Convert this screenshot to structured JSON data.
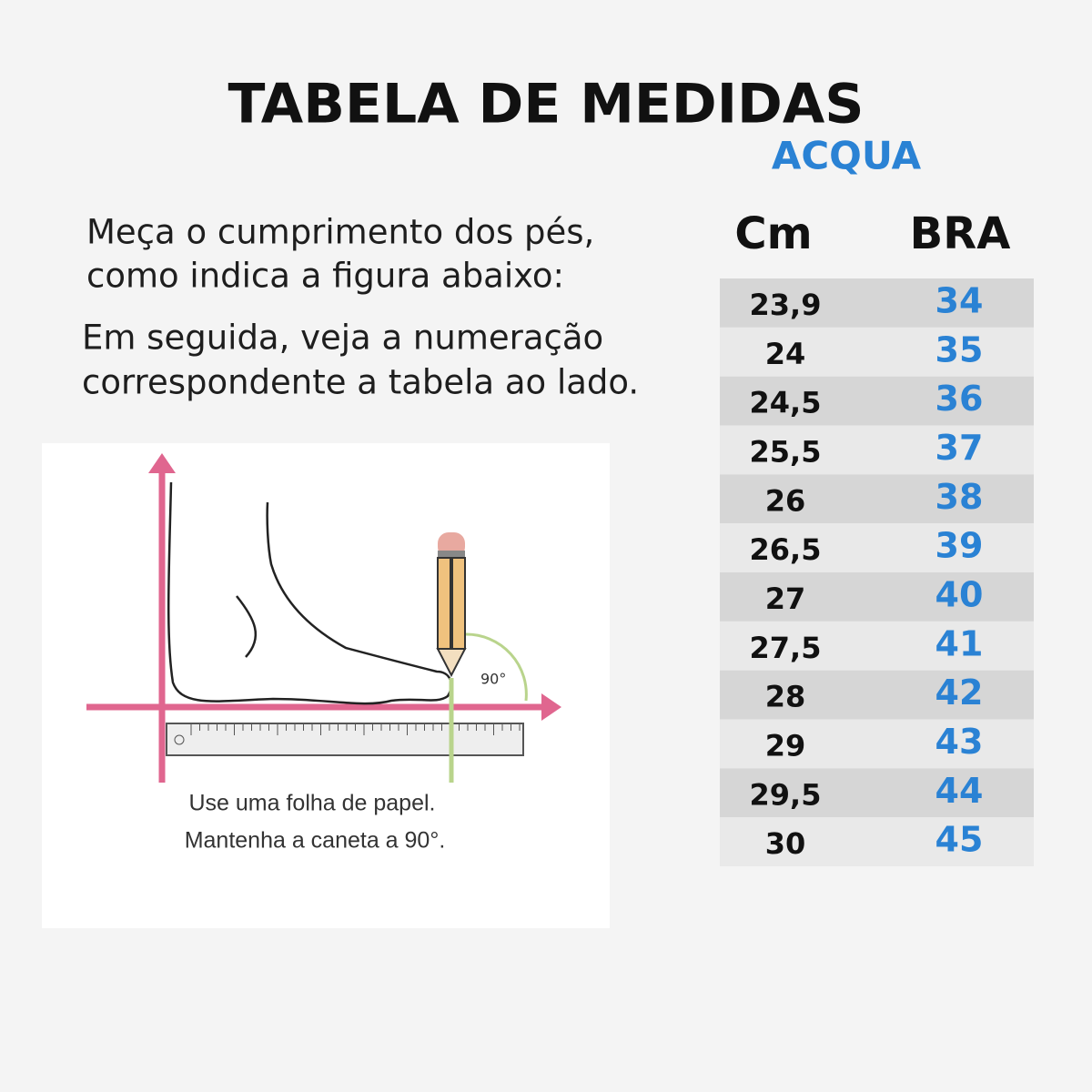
{
  "header": {
    "title": "TABELA DE MEDIDAS",
    "subtitle": "ACQUA"
  },
  "instructions": [
    "Meça o cumprimento dos pés,",
    "como indica a figura abaixo:",
    "Em seguida, veja a numeração",
    "correspondente a tabela ao lado."
  ],
  "figure": {
    "angle_label": "90°",
    "caption": [
      "Use uma folha de papel.",
      "Mantenha a caneta a 90°."
    ]
  },
  "table": {
    "headers": [
      "Cm",
      "BRA"
    ],
    "rows": [
      [
        "23,9",
        34
      ],
      [
        "24",
        35
      ],
      [
        "24,5",
        36
      ],
      [
        "25,5",
        37
      ],
      [
        "26",
        38
      ],
      [
        "26,5",
        39
      ],
      [
        "27",
        40
      ],
      [
        "27,5",
        41
      ],
      [
        "28",
        42
      ],
      [
        "29",
        43
      ],
      [
        "29,5",
        44
      ],
      [
        "30",
        45
      ]
    ]
  }
}
